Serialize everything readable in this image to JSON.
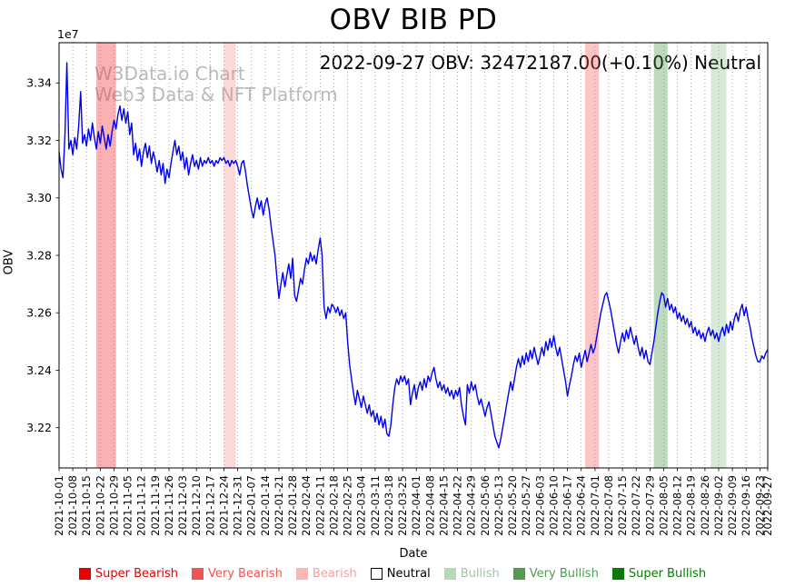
{
  "annotation": "2022-09-27 OBV: 32472187.00(+0.10%) Neutral",
  "watermark": {
    "line1": "W3Data.io Chart",
    "line2": "Web3 Data & NFT Platform"
  },
  "chart_data": {
    "type": "line",
    "title": "OBV BIB PD",
    "xlabel": "Date",
    "ylabel": "OBV",
    "y_offset_label": "1e7",
    "line_color": "#0000ee",
    "ylim": [
      3.206,
      3.354
    ],
    "y_ticks": [
      3.22,
      3.24,
      3.26,
      3.28,
      3.3,
      3.32,
      3.34
    ],
    "x_tick_labels": [
      "2021-10-01",
      "2021-10-08",
      "2021-10-15",
      "2021-10-22",
      "2021-10-29",
      "2021-11-05",
      "2021-11-12",
      "2021-11-19",
      "2021-11-26",
      "2021-12-03",
      "2021-12-10",
      "2021-12-17",
      "2021-12-24",
      "2021-12-31",
      "2022-01-07",
      "2022-01-14",
      "2022-01-21",
      "2022-01-28",
      "2022-02-04",
      "2022-02-11",
      "2022-02-18",
      "2022-02-25",
      "2022-03-04",
      "2022-03-11",
      "2022-03-18",
      "2022-03-25",
      "2022-04-01",
      "2022-04-08",
      "2022-04-15",
      "2022-04-22",
      "2022-04-29",
      "2022-05-06",
      "2022-05-13",
      "2022-05-20",
      "2022-05-27",
      "2022-06-03",
      "2022-06-10",
      "2022-06-17",
      "2022-06-24",
      "2022-07-01",
      "2022-07-08",
      "2022-07-15",
      "2022-07-22",
      "2022-07-29",
      "2022-08-05",
      "2022-08-12",
      "2022-08-19",
      "2022-08-26",
      "2022-09-02",
      "2022-09-09",
      "2022-09-16",
      "2022-09-23",
      "2022-09-27"
    ],
    "x_tick_days": [
      0,
      7,
      14,
      21,
      28,
      35,
      42,
      49,
      56,
      63,
      70,
      77,
      84,
      91,
      98,
      105,
      112,
      119,
      126,
      133,
      140,
      147,
      154,
      161,
      168,
      175,
      182,
      189,
      196,
      203,
      210,
      217,
      224,
      231,
      238,
      245,
      252,
      259,
      266,
      273,
      280,
      287,
      294,
      301,
      308,
      315,
      322,
      329,
      336,
      343,
      350,
      357,
      361
    ],
    "series": [
      {
        "name": "OBV",
        "x_start_date": "2021-10-01",
        "x_end_date": "2022-09-27",
        "last_value": 32472187.0,
        "last_change_pct": "+0.10%",
        "last_signal": "Neutral",
        "values_1e7": [
          3.316,
          3.31,
          3.307,
          3.322,
          3.347,
          3.317,
          3.32,
          3.315,
          3.321,
          3.317,
          3.325,
          3.337,
          3.319,
          3.322,
          3.318,
          3.324,
          3.32,
          3.326,
          3.321,
          3.317,
          3.323,
          3.319,
          3.325,
          3.321,
          3.317,
          3.322,
          3.318,
          3.323,
          3.327,
          3.324,
          3.329,
          3.332,
          3.327,
          3.331,
          3.326,
          3.33,
          3.322,
          3.326,
          3.315,
          3.319,
          3.313,
          3.317,
          3.311,
          3.316,
          3.319,
          3.314,
          3.318,
          3.312,
          3.316,
          3.313,
          3.309,
          3.313,
          3.308,
          3.312,
          3.305,
          3.31,
          3.307,
          3.312,
          3.316,
          3.32,
          3.315,
          3.318,
          3.313,
          3.316,
          3.31,
          3.314,
          3.308,
          3.312,
          3.315,
          3.311,
          3.313,
          3.31,
          3.314,
          3.311,
          3.313,
          3.312,
          3.314,
          3.312,
          3.313,
          3.311,
          3.313,
          3.312,
          3.314,
          3.313,
          3.314,
          3.312,
          3.313,
          3.311,
          3.313,
          3.312,
          3.313,
          3.311,
          3.308,
          3.312,
          3.313,
          3.309,
          3.304,
          3.3,
          3.296,
          3.293,
          3.297,
          3.3,
          3.296,
          3.299,
          3.294,
          3.298,
          3.3,
          3.296,
          3.29,
          3.285,
          3.28,
          3.272,
          3.265,
          3.27,
          3.274,
          3.269,
          3.273,
          3.277,
          3.272,
          3.279,
          3.266,
          3.264,
          3.268,
          3.272,
          3.27,
          3.275,
          3.279,
          3.277,
          3.281,
          3.278,
          3.28,
          3.277,
          3.282,
          3.286,
          3.28,
          3.262,
          3.258,
          3.262,
          3.26,
          3.263,
          3.262,
          3.26,
          3.262,
          3.259,
          3.261,
          3.258,
          3.26,
          3.25,
          3.242,
          3.237,
          3.232,
          3.228,
          3.233,
          3.23,
          3.227,
          3.231,
          3.228,
          3.225,
          3.228,
          3.224,
          3.226,
          3.222,
          3.225,
          3.221,
          3.224,
          3.22,
          3.223,
          3.218,
          3.217,
          3.221,
          3.228,
          3.234,
          3.237,
          3.235,
          3.238,
          3.236,
          3.238,
          3.235,
          3.237,
          3.228,
          3.232,
          3.235,
          3.23,
          3.234,
          3.236,
          3.233,
          3.237,
          3.234,
          3.238,
          3.236,
          3.239,
          3.241,
          3.237,
          3.234,
          3.236,
          3.233,
          3.235,
          3.232,
          3.234,
          3.231,
          3.233,
          3.23,
          3.233,
          3.231,
          3.234,
          3.228,
          3.224,
          3.221,
          3.235,
          3.232,
          3.236,
          3.233,
          3.235,
          3.231,
          3.228,
          3.23,
          3.227,
          3.224,
          3.227,
          3.229,
          3.225,
          3.221,
          3.217,
          3.215,
          3.213,
          3.216,
          3.22,
          3.224,
          3.228,
          3.232,
          3.236,
          3.233,
          3.237,
          3.241,
          3.244,
          3.241,
          3.245,
          3.242,
          3.246,
          3.243,
          3.247,
          3.244,
          3.248,
          3.245,
          3.242,
          3.245,
          3.248,
          3.245,
          3.25,
          3.247,
          3.251,
          3.248,
          3.252,
          3.248,
          3.245,
          3.248,
          3.244,
          3.24,
          3.236,
          3.231,
          3.235,
          3.238,
          3.242,
          3.245,
          3.243,
          3.246,
          3.241,
          3.244,
          3.247,
          3.243,
          3.246,
          3.249,
          3.246,
          3.248,
          3.252,
          3.256,
          3.26,
          3.263,
          3.266,
          3.267,
          3.264,
          3.261,
          3.257,
          3.253,
          3.249,
          3.246,
          3.25,
          3.253,
          3.25,
          3.254,
          3.251,
          3.255,
          3.252,
          3.249,
          3.252,
          3.248,
          3.245,
          3.248,
          3.244,
          3.247,
          3.243,
          3.242,
          3.246,
          3.25,
          3.255,
          3.26,
          3.264,
          3.267,
          3.266,
          3.262,
          3.265,
          3.261,
          3.263,
          3.26,
          3.262,
          3.258,
          3.26,
          3.257,
          3.259,
          3.256,
          3.258,
          3.255,
          3.257,
          3.253,
          3.255,
          3.252,
          3.254,
          3.251,
          3.253,
          3.25,
          3.253,
          3.255,
          3.252,
          3.254,
          3.251,
          3.253,
          3.25,
          3.253,
          3.255,
          3.252,
          3.256,
          3.253,
          3.257,
          3.254,
          3.258,
          3.26,
          3.257,
          3.261,
          3.263,
          3.259,
          3.262,
          3.258,
          3.255,
          3.251,
          3.248,
          3.245,
          3.243,
          3.243,
          3.245,
          3.244,
          3.246,
          3.2472187
        ]
      }
    ],
    "bands": [
      {
        "signal": "Very Bearish",
        "start_day": 19,
        "end_day": 29,
        "color": "rgba(240,60,60,0.40)"
      },
      {
        "signal": "Bearish",
        "start_day": 84,
        "end_day": 90,
        "color": "rgba(250,130,130,0.30)"
      },
      {
        "signal": "Bearish",
        "start_day": 268,
        "end_day": 275,
        "color": "rgba(245,90,90,0.35)"
      },
      {
        "signal": "Bullish",
        "start_day": 303,
        "end_day": 310,
        "color": "rgba(70,150,70,0.35)"
      },
      {
        "signal": "Bullish",
        "start_day": 332,
        "end_day": 340,
        "color": "rgba(120,175,120,0.28)"
      }
    ],
    "legend": [
      {
        "label": "Super Bearish",
        "color": "#e60000",
        "text_color": "#e60000"
      },
      {
        "label": "Very Bearish",
        "color": "#f05555",
        "text_color": "#f05555"
      },
      {
        "label": "Bearish",
        "color": "#f8b8b8",
        "text_color": "#f2a0a0"
      },
      {
        "label": "Neutral",
        "color": "#ffffff",
        "text_color": "#000000"
      },
      {
        "label": "Bullish",
        "color": "#b8d8b8",
        "text_color": "#a0c8a0"
      },
      {
        "label": "Very Bullish",
        "color": "#4f9d4f",
        "text_color": "#4f9d4f"
      },
      {
        "label": "Super Bullish",
        "color": "#0a7a0a",
        "text_color": "#0a7a0a"
      }
    ],
    "grid": "vertical-dotted",
    "legend_position": "bottom-center"
  }
}
